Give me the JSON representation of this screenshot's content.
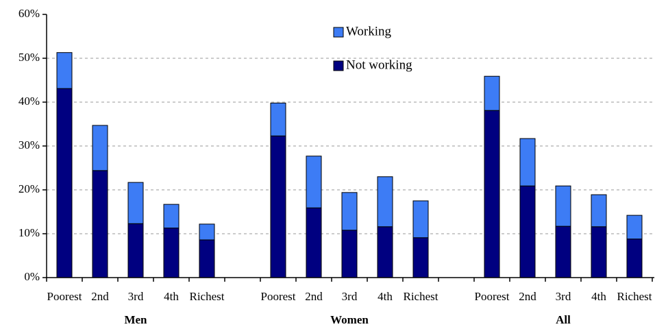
{
  "chart_data": {
    "type": "stacked_bar",
    "categories": [
      "Poorest",
      "2nd",
      "3rd",
      "4th",
      "Richest",
      null,
      "Poorest",
      "2nd",
      "3rd",
      "4th",
      "Richest",
      null,
      "Poorest",
      "2nd",
      "3rd",
      "4th",
      "Richest"
    ],
    "groups": [
      "Men",
      "Women",
      "All"
    ],
    "series": [
      {
        "name": "Not working",
        "color": "#000080",
        "values": [
          43.1,
          24.4,
          12.3,
          11.3,
          8.6,
          null,
          32.3,
          15.9,
          10.8,
          11.6,
          9.1,
          null,
          38.1,
          20.9,
          11.7,
          11.6,
          8.8
        ]
      },
      {
        "name": "Working",
        "color": "#3d7cf5",
        "values": [
          8.2,
          10.3,
          9.4,
          5.4,
          3.6,
          null,
          7.5,
          11.8,
          8.6,
          11.4,
          8.4,
          null,
          7.8,
          10.8,
          9.2,
          7.3,
          5.4
        ]
      }
    ],
    "ylim": [
      0,
      60
    ],
    "yticks": [
      {
        "value": 0,
        "label": "0%"
      },
      {
        "value": 10,
        "label": "10%"
      },
      {
        "value": 20,
        "label": "20%"
      },
      {
        "value": 30,
        "label": "30%"
      },
      {
        "value": 40,
        "label": "40%"
      },
      {
        "value": 50,
        "label": "50%"
      },
      {
        "value": 60,
        "label": "60%"
      }
    ],
    "grid": true,
    "legend": "top"
  }
}
